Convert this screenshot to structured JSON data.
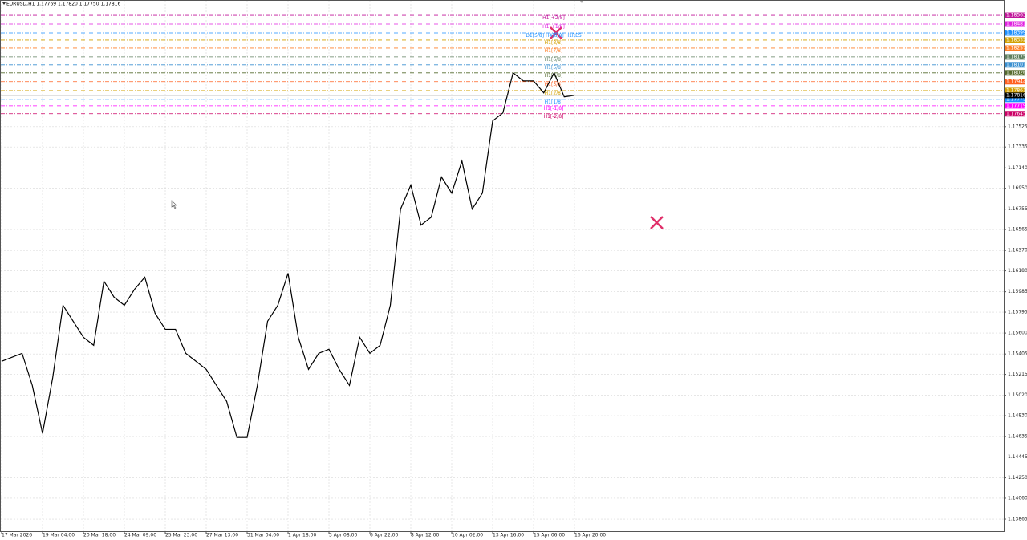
{
  "chart_data": {
    "type": "line",
    "title": "EURUSD,H1  1.17769 1.17820 1.17750 1.17816",
    "categories": [
      "17 Mar 2026",
      null,
      null,
      null,
      "19 Mar 04:00",
      null,
      null,
      null,
      "20 Mar 18:00",
      null,
      null,
      null,
      "24 Mar 09:00",
      null,
      null,
      null,
      "25 Mar 23:00",
      null,
      null,
      null,
      "27 Mar 13:00",
      null,
      null,
      null,
      "31 Mar 04:00",
      null,
      null,
      null,
      "1 Apr 18:00",
      null,
      null,
      null,
      "3 Apr 08:00",
      null,
      null,
      null,
      "6 Apr 22:00",
      null,
      null,
      null,
      "8 Apr 12:00",
      null,
      null,
      null,
      "10 Apr 02:00",
      null,
      null,
      null,
      "13 Apr 16:00",
      null,
      null,
      null,
      "15 Apr 06:00",
      null,
      null,
      null,
      "16 Apr 20:00"
    ],
    "series": [
      {
        "name": "EURUSD",
        "color": "#000000",
        "values": [
          1.15337,
          1.15374,
          1.15411,
          1.15112,
          1.14664,
          1.15187,
          1.15859,
          1.1571,
          1.15561,
          1.15486,
          1.16084,
          1.15934,
          1.15859,
          1.16009,
          1.16121,
          1.15785,
          1.15635,
          1.15635,
          1.15411,
          1.15337,
          1.15262,
          1.15112,
          1.14963,
          1.14627,
          1.14627,
          1.15112,
          1.1571,
          1.15859,
          1.16158,
          1.15561,
          1.15262,
          1.15411,
          1.15449,
          1.15262,
          1.15112,
          1.15561,
          1.15411,
          1.15486,
          1.15859,
          1.16756,
          1.1698,
          1.16606,
          1.16681,
          1.17055,
          1.16905,
          1.17204,
          1.16756,
          1.16905,
          1.17578,
          1.17652,
          1.18026,
          1.17951,
          1.17951,
          1.17839,
          1.18026,
          1.17802,
          1.17816
        ]
      }
    ],
    "ylim": [
      1.13753,
      1.18698
    ],
    "yticks": [
      1.17525,
      1.17335,
      {
        "value": 1.1714,
        "label": "1.17140"
      },
      {
        "value": 1.1695,
        "label": "1.16950"
      },
      1.16755,
      1.16565,
      {
        "value": 1.1637,
        "label": "1.16370"
      },
      {
        "value": 1.1618,
        "label": "1.16180"
      },
      1.15985,
      1.15795,
      {
        "value": 1.156,
        "label": "1.15600"
      },
      1.15405,
      1.15215,
      {
        "value": 1.1502,
        "label": "1.15020"
      },
      {
        "value": 1.1483,
        "label": "1.14830"
      },
      1.14635,
      1.14445,
      {
        "value": 1.1425,
        "label": "1.14250"
      },
      {
        "value": 1.1406,
        "label": "1.14060"
      },
      1.13865
    ],
    "grid": true,
    "levels": [
      {
        "name": "H1[+2/8]",
        "value": 1.18563,
        "color": "#c0169a"
      },
      {
        "name": "H1[+1/8]",
        "value": 1.18481,
        "color": "#e020e0"
      },
      {
        "name": "D1[5/8] H4[8/8] H1RES",
        "value": 1.18399,
        "color": "#1e90ff"
      },
      {
        "name": "H1[8/8]",
        "value": 1.18332,
        "color": "#d2a000"
      },
      {
        "name": "H1[7/8]",
        "value": 1.18257,
        "color": "#ff7f27"
      },
      {
        "name": "H1[6/8]",
        "value": 1.18175,
        "color": "#5f7f5f"
      },
      {
        "name": "H1[5/8]",
        "value": 1.18101,
        "color": "#3a8fd0"
      },
      {
        "name": "H1[4/8]",
        "value": 1.18026,
        "color": "#556b2f"
      },
      {
        "name": "H1[3/8]",
        "value": 1.17944,
        "color": "#ff6020"
      },
      {
        "name": "H1[2/8]",
        "value": 1.17861,
        "color": "#d2a000"
      },
      {
        "name": "H1[1/8]",
        "value": 1.17779,
        "color": "#1e90ff"
      },
      {
        "name": "H1[-1/8]",
        "value": 1.17719,
        "color": "#ff00ff"
      },
      {
        "name": "H1[-2/8]",
        "value": 1.17645,
        "color": "#cc0066"
      }
    ],
    "bid": {
      "value": 1.17816,
      "color": "#000000"
    }
  }
}
